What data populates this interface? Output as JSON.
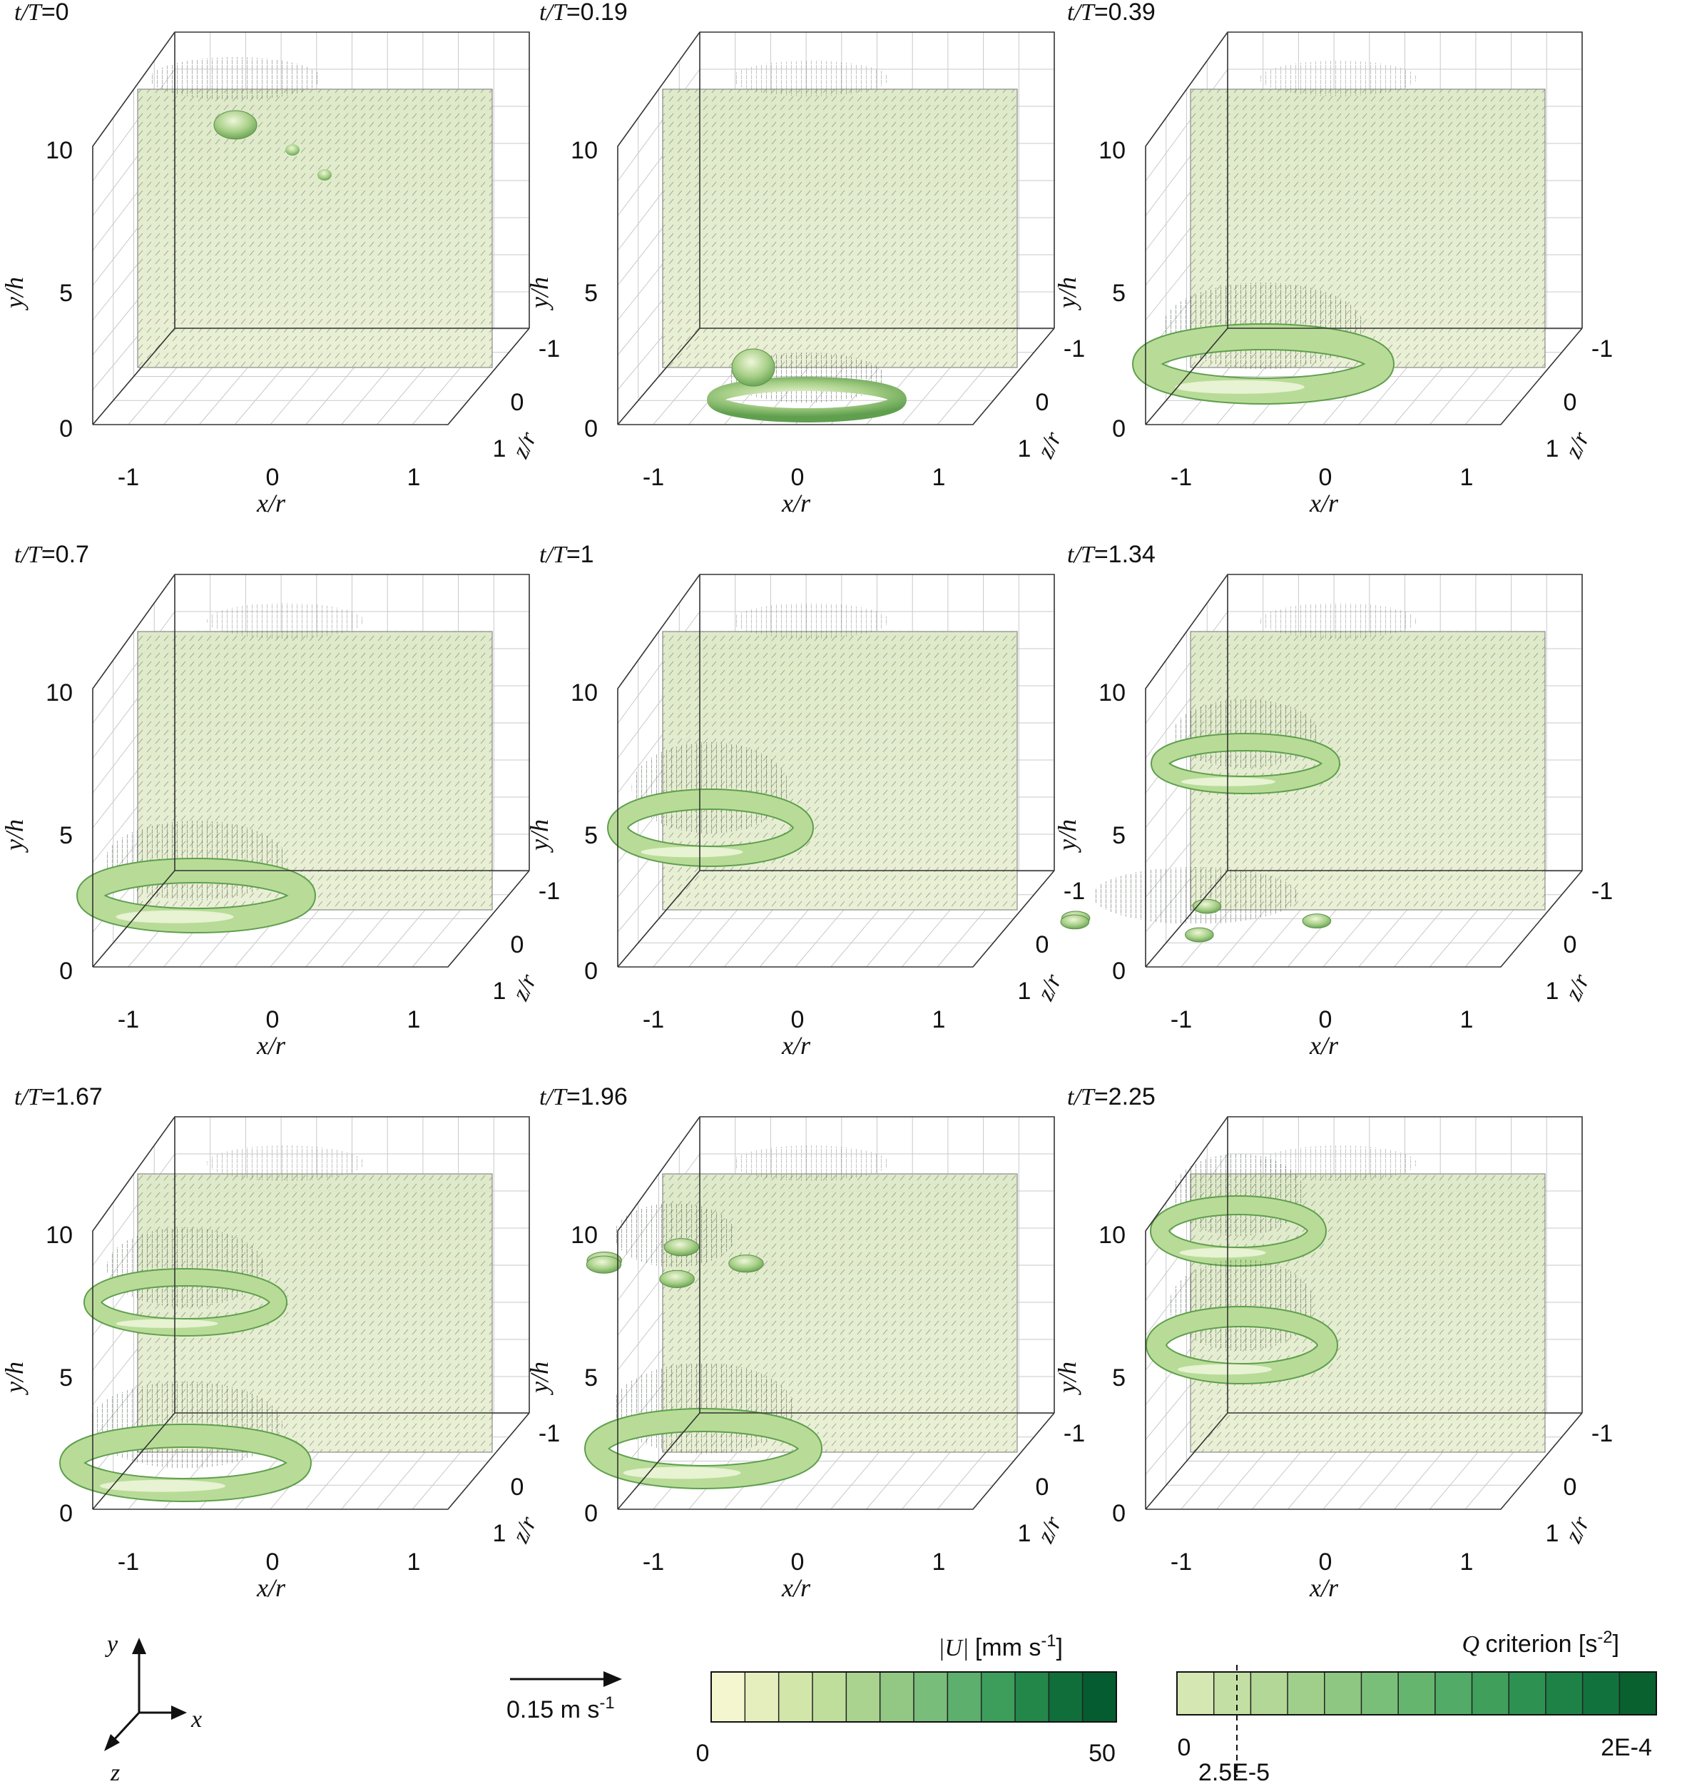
{
  "panels": [
    {
      "label": "t/T=0",
      "t_over_T": 0
    },
    {
      "label": "t/T=0.19",
      "t_over_T": 0.19
    },
    {
      "label": "t/T=0.39",
      "t_over_T": 0.39
    },
    {
      "label": "t/T=0.7",
      "t_over_T": 0.7
    },
    {
      "label": "t/T=1",
      "t_over_T": 1
    },
    {
      "label": "t/T=1.34",
      "t_over_T": 1.34
    },
    {
      "label": "t/T=1.67",
      "t_over_T": 1.67
    },
    {
      "label": "t/T=1.96",
      "t_over_T": 1.96
    },
    {
      "label": "t/T=2.25",
      "t_over_T": 2.25
    }
  ],
  "axes": {
    "x_label": "x/r",
    "y_label": "y/h",
    "z_label": "z/r",
    "x_ticks": [
      "-1",
      "0",
      "1"
    ],
    "y_ticks": [
      "0",
      "5",
      "10"
    ],
    "z_ticks": [
      "-1",
      "0",
      "1"
    ]
  },
  "triad": {
    "x": "x",
    "y": "y",
    "z": "z"
  },
  "reference_vector": {
    "label": "0.15 m s-1",
    "value": 0.15,
    "unit": "m s-1"
  },
  "velocity_colorbar": {
    "title": "|U| [mm s-1]",
    "min_label": "0",
    "max_label": "50",
    "min": 0,
    "max": 50,
    "colors": [
      "#f4f6cf",
      "#e5efbd",
      "#d2e6aa",
      "#bfde9c",
      "#aad38f",
      "#92c884",
      "#78bd79",
      "#5caf6c",
      "#3d9d5b",
      "#23874a",
      "#0f6e3a",
      "#055c30"
    ]
  },
  "q_colorbar": {
    "title": "Q criterion [s-2]",
    "min_label": "0",
    "max_label": "2E-4",
    "threshold_label": "2.5E-5",
    "min": 0,
    "max": 0.0002,
    "threshold": 2.5e-05,
    "colors": [
      "#d5e8b3",
      "#c4dfa3",
      "#b2d796",
      "#a0cf8b",
      "#8dc782",
      "#7abf79",
      "#66b56f",
      "#52ab66",
      "#3f9f5b",
      "#2d9151",
      "#1e8247",
      "#12723d",
      "#09612f"
    ]
  }
}
